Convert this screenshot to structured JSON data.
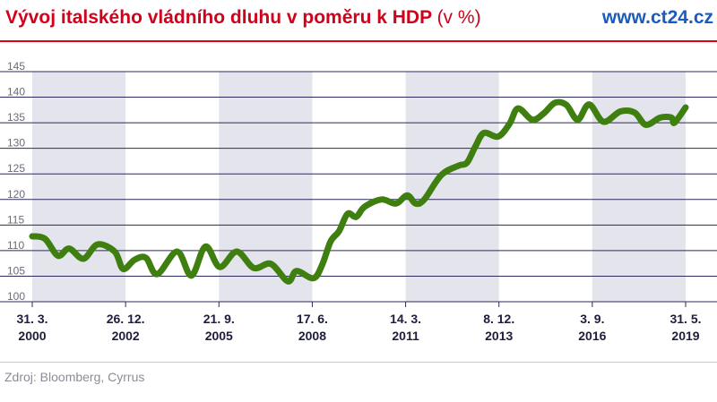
{
  "header": {
    "title": "Vývoj italského vládního dluhu v poměru k HDP",
    "unit": "(v %)",
    "site": "www.ct24.cz"
  },
  "footer": {
    "source": "Zdroj: Bloomberg, Cyrrus"
  },
  "colors": {
    "title": "#d0021b",
    "site": "#1a5bbf",
    "line": "#3f7f0f",
    "band": "#e4e4ec",
    "grid": "#2a2a5a"
  },
  "chart_data": {
    "type": "line",
    "ylim": [
      100,
      145
    ],
    "yticks": [
      100,
      105,
      110,
      115,
      120,
      125,
      130,
      135,
      140,
      145
    ],
    "xlim": [
      "2000-03-31",
      "2019-05-31"
    ],
    "xticks": [
      {
        "date": "2000-03-31",
        "line1": "31. 3.",
        "line2": "2000"
      },
      {
        "date": "2002-12-26",
        "line1": "26. 12.",
        "line2": "2002"
      },
      {
        "date": "2005-09-21",
        "line1": "21. 9.",
        "line2": "2005"
      },
      {
        "date": "2008-06-17",
        "line1": "17. 6.",
        "line2": "2008"
      },
      {
        "date": "2011-03-14",
        "line1": "14. 3.",
        "line2": "2011"
      },
      {
        "date": "2013-12-08",
        "line1": "8. 12.",
        "line2": "2013"
      },
      {
        "date": "2016-09-03",
        "line1": "3. 9.",
        "line2": "2016"
      },
      {
        "date": "2019-05-31",
        "line1": "31. 5.",
        "line2": "2019"
      }
    ],
    "bands": [
      [
        "2000-03-31",
        "2002-12-26"
      ],
      [
        "2005-09-21",
        "2008-06-17"
      ],
      [
        "2011-03-14",
        "2013-12-08"
      ],
      [
        "2016-09-03",
        "2019-05-31"
      ]
    ],
    "series": [
      {
        "points": [
          [
            "2000-03-31",
            112.8
          ],
          [
            "2000-08-15",
            112.3
          ],
          [
            "2000-12-31",
            109.0
          ],
          [
            "2001-04-30",
            110.4
          ],
          [
            "2001-09-30",
            108.4
          ],
          [
            "2002-02-28",
            111.2
          ],
          [
            "2002-08-31",
            109.8
          ],
          [
            "2002-11-30",
            106.4
          ],
          [
            "2003-03-31",
            108.2
          ],
          [
            "2003-07-31",
            108.6
          ],
          [
            "2003-11-30",
            105.4
          ],
          [
            "2004-06-30",
            109.8
          ],
          [
            "2004-11-30",
            105.1
          ],
          [
            "2005-04-30",
            110.8
          ],
          [
            "2005-09-30",
            106.8
          ],
          [
            "2006-03-31",
            109.8
          ],
          [
            "2006-09-30",
            106.6
          ],
          [
            "2007-03-31",
            107.4
          ],
          [
            "2007-09-30",
            104.0
          ],
          [
            "2007-12-31",
            106.0
          ],
          [
            "2008-06-30",
            104.6
          ],
          [
            "2008-09-30",
            107.2
          ],
          [
            "2008-12-31",
            111.8
          ],
          [
            "2009-03-31",
            113.8
          ],
          [
            "2009-06-30",
            117.2
          ],
          [
            "2009-09-30",
            116.6
          ],
          [
            "2009-12-31",
            118.6
          ],
          [
            "2010-06-30",
            120.0
          ],
          [
            "2010-11-30",
            119.2
          ],
          [
            "2011-03-31",
            120.8
          ],
          [
            "2011-06-30",
            119.2
          ],
          [
            "2011-09-30",
            120.0
          ],
          [
            "2012-03-31",
            124.8
          ],
          [
            "2012-09-30",
            126.6
          ],
          [
            "2012-12-31",
            127.2
          ],
          [
            "2013-03-31",
            130.4
          ],
          [
            "2013-06-30",
            133.0
          ],
          [
            "2013-11-30",
            132.3
          ],
          [
            "2014-03-31",
            134.8
          ],
          [
            "2014-06-30",
            137.8
          ],
          [
            "2014-11-30",
            135.6
          ],
          [
            "2015-03-31",
            136.8
          ],
          [
            "2015-07-31",
            138.9
          ],
          [
            "2015-11-30",
            138.5
          ],
          [
            "2016-03-31",
            135.6
          ],
          [
            "2016-07-31",
            138.6
          ],
          [
            "2016-12-31",
            135.2
          ],
          [
            "2017-06-30",
            137.2
          ],
          [
            "2017-11-30",
            137.0
          ],
          [
            "2018-03-31",
            134.6
          ],
          [
            "2018-08-31",
            136.0
          ],
          [
            "2018-12-31",
            136.0
          ],
          [
            "2019-01-31",
            135.0
          ],
          [
            "2019-05-31",
            138.0
          ]
        ]
      }
    ]
  }
}
